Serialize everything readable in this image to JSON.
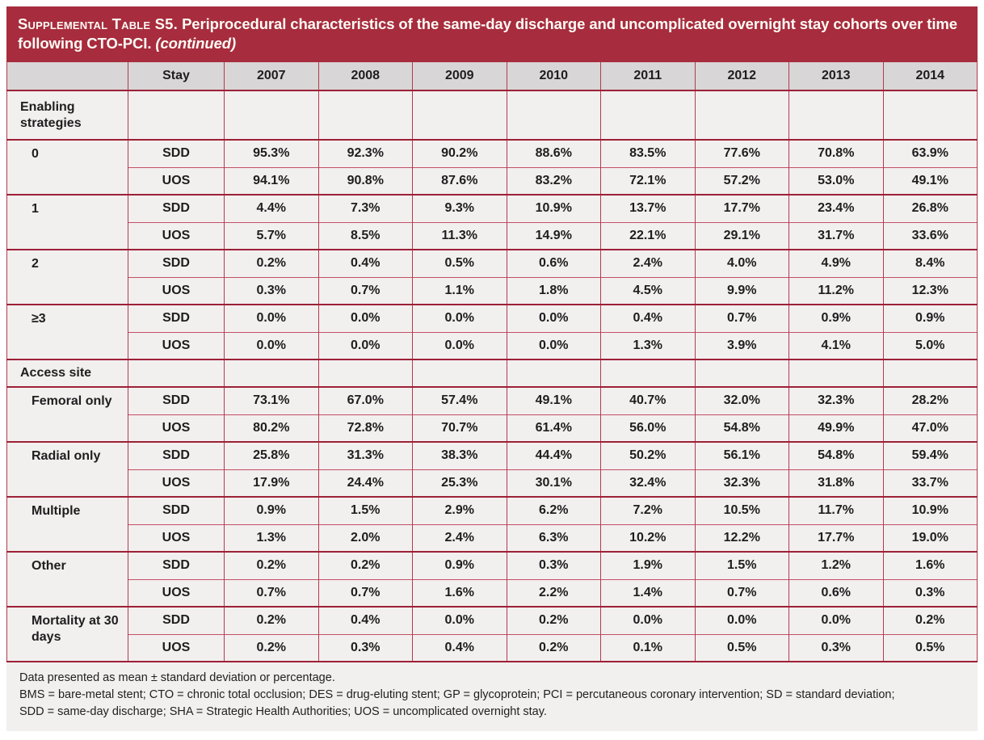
{
  "title": {
    "label": "Supplemental Table S5.",
    "line1": "Periprocedural characteristics of the same-day discharge and uncomplicated overnight stay cohorts over time",
    "line2": "following CTO-PCI.",
    "continued": "(continued)"
  },
  "table": {
    "columns": [
      "",
      "Stay",
      "2007",
      "2008",
      "2009",
      "2010",
      "2011",
      "2012",
      "2013",
      "2014"
    ],
    "stay_labels": [
      "SDD",
      "UOS"
    ],
    "sections": [
      {
        "header": "Enabling strategies",
        "rows": [
          {
            "label": "0",
            "sdd": [
              "95.3%",
              "92.3%",
              "90.2%",
              "88.6%",
              "83.5%",
              "77.6%",
              "70.8%",
              "63.9%"
            ],
            "uos": [
              "94.1%",
              "90.8%",
              "87.6%",
              "83.2%",
              "72.1%",
              "57.2%",
              "53.0%",
              "49.1%"
            ]
          },
          {
            "label": "1",
            "sdd": [
              "4.4%",
              "7.3%",
              "9.3%",
              "10.9%",
              "13.7%",
              "17.7%",
              "23.4%",
              "26.8%"
            ],
            "uos": [
              "5.7%",
              "8.5%",
              "11.3%",
              "14.9%",
              "22.1%",
              "29.1%",
              "31.7%",
              "33.6%"
            ]
          },
          {
            "label": "2",
            "sdd": [
              "0.2%",
              "0.4%",
              "0.5%",
              "0.6%",
              "2.4%",
              "4.0%",
              "4.9%",
              "8.4%"
            ],
            "uos": [
              "0.3%",
              "0.7%",
              "1.1%",
              "1.8%",
              "4.5%",
              "9.9%",
              "11.2%",
              "12.3%"
            ]
          },
          {
            "label": "≥3",
            "sdd": [
              "0.0%",
              "0.0%",
              "0.0%",
              "0.0%",
              "0.4%",
              "0.7%",
              "0.9%",
              "0.9%"
            ],
            "uos": [
              "0.0%",
              "0.0%",
              "0.0%",
              "0.0%",
              "1.3%",
              "3.9%",
              "4.1%",
              "5.0%"
            ]
          }
        ]
      },
      {
        "header": "Access site",
        "rows": [
          {
            "label": "Femoral only",
            "sdd": [
              "73.1%",
              "67.0%",
              "57.4%",
              "49.1%",
              "40.7%",
              "32.0%",
              "32.3%",
              "28.2%"
            ],
            "uos": [
              "80.2%",
              "72.8%",
              "70.7%",
              "61.4%",
              "56.0%",
              "54.8%",
              "49.9%",
              "47.0%"
            ]
          },
          {
            "label": "Radial only",
            "sdd": [
              "25.8%",
              "31.3%",
              "38.3%",
              "44.4%",
              "50.2%",
              "56.1%",
              "54.8%",
              "59.4%"
            ],
            "uos": [
              "17.9%",
              "24.4%",
              "25.3%",
              "30.1%",
              "32.4%",
              "32.3%",
              "31.8%",
              "33.7%"
            ]
          },
          {
            "label": "Multiple",
            "sdd": [
              "0.9%",
              "1.5%",
              "2.9%",
              "6.2%",
              "7.2%",
              "10.5%",
              "11.7%",
              "10.9%"
            ],
            "uos": [
              "1.3%",
              "2.0%",
              "2.4%",
              "6.3%",
              "10.2%",
              "12.2%",
              "17.7%",
              "19.0%"
            ]
          },
          {
            "label": "Other",
            "sdd": [
              "0.2%",
              "0.2%",
              "0.9%",
              "0.3%",
              "1.9%",
              "1.5%",
              "1.2%",
              "1.6%"
            ],
            "uos": [
              "0.7%",
              "0.7%",
              "1.6%",
              "2.2%",
              "1.4%",
              "0.7%",
              "0.6%",
              "0.3%"
            ]
          }
        ]
      },
      {
        "header": null,
        "rows": [
          {
            "label": "Mortality at 30 days",
            "sdd": [
              "0.2%",
              "0.4%",
              "0.0%",
              "0.2%",
              "0.0%",
              "0.0%",
              "0.0%",
              "0.2%"
            ],
            "uos": [
              "0.2%",
              "0.3%",
              "0.4%",
              "0.2%",
              "0.1%",
              "0.5%",
              "0.3%",
              "0.5%"
            ]
          }
        ]
      }
    ]
  },
  "footnotes": [
    "Data presented as mean ± standard deviation or percentage.",
    "BMS = bare-metal stent; CTO = chronic total occlusion; DES = drug-eluting stent; GP = glycoprotein; PCI = percutaneous coronary intervention; SD = standard deviation;",
    "SDD = same-day discharge; SHA = Strategic Health Authorities; UOS = uncomplicated overnight stay."
  ],
  "colors": {
    "banner": "#a72c3d",
    "border": "#b23a50",
    "divider": "#9d2136",
    "header_bg": "#d9d6d7",
    "cell_bg": "#f2efef",
    "title_text": "#fcfbf5",
    "body_text": "#1f1d1e"
  }
}
